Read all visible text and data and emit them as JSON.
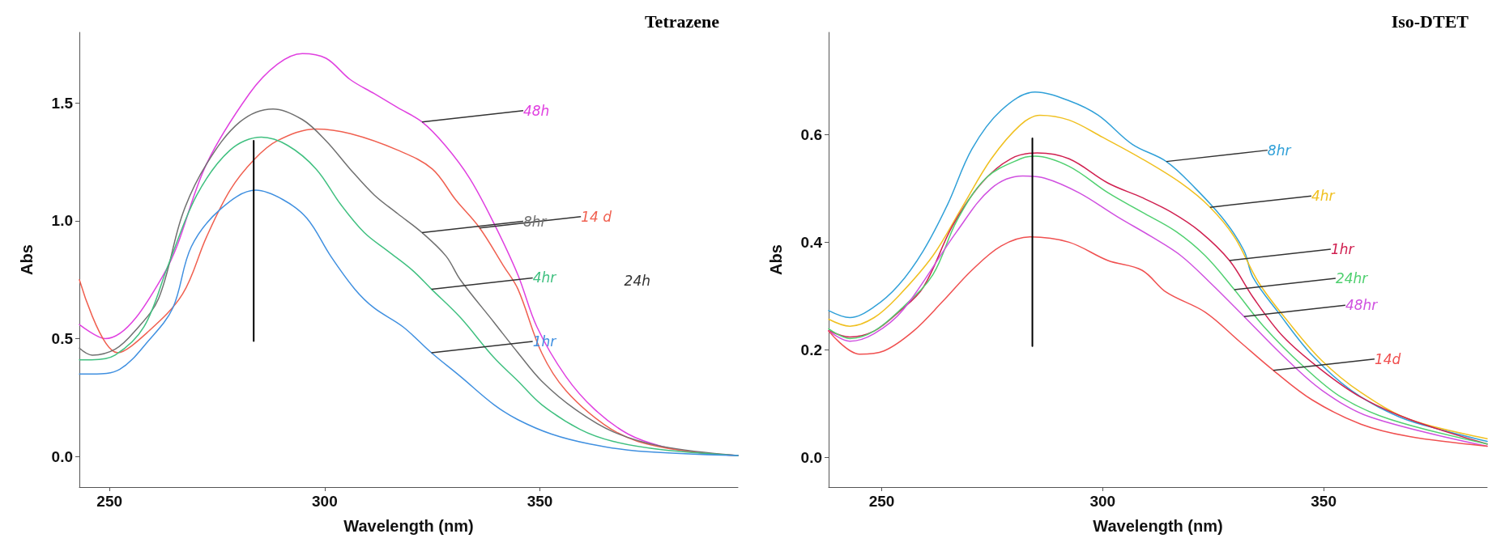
{
  "chart_data": [
    {
      "type": "line",
      "title": "Tetrazene",
      "xlabel": "Wavelength (nm)",
      "ylabel": "Abs",
      "xlim": [
        243,
        396
      ],
      "xticks": [
        250,
        300,
        350
      ],
      "ylim": [
        -0.13,
        1.8
      ],
      "yticks": [
        {
          "value": 0,
          "label": "0.0"
        },
        {
          "value": 0.5,
          "label": "0.5"
        },
        {
          "value": 1,
          "label": "1.0"
        },
        {
          "value": 1.5,
          "label": "1.5"
        }
      ],
      "grid": false,
      "marker": "none",
      "annotations": [
        "24h"
      ],
      "series": [
        {
          "name": "48h",
          "color": "#e040e0",
          "x": [
            243,
            249,
            262.5,
            272.5,
            282.5,
            289,
            294.8,
            300.3,
            305.9,
            311.5,
            317,
            322.6,
            328,
            333.7,
            339.3,
            344.9,
            349.3,
            356,
            362.7,
            370.5,
            378.3,
            387,
            396
          ],
          "values": [
            0.56,
            0.5,
            0.77,
            1.24,
            1.54,
            1.665,
            1.71,
            1.69,
            1.6,
            1.54,
            1.48,
            1.42,
            1.32,
            1.18,
            0.99,
            0.77,
            0.55,
            0.34,
            0.2,
            0.095,
            0.043,
            0.016,
            0.004
          ]
        },
        {
          "name": "14 d",
          "color": "#f06050",
          "x": [
            243,
            251.9,
            259,
            267,
            272.5,
            278,
            283.6,
            289,
            298,
            306,
            317,
            325,
            330.4,
            336,
            341.5,
            344.9,
            350.4,
            356,
            364.9,
            372.7,
            383.9,
            396
          ],
          "values": [
            0.75,
            0.44,
            0.53,
            0.69,
            0.93,
            1.13,
            1.26,
            1.34,
            1.39,
            1.37,
            1.3,
            1.22,
            1.09,
            0.97,
            0.81,
            0.71,
            0.44,
            0.28,
            0.136,
            0.064,
            0.023,
            0.004
          ]
        },
        {
          "name": "8hr",
          "color": "#707070",
          "x": [
            243,
            246,
            251.3,
            255.8,
            261.4,
            267,
            272.5,
            280.3,
            288,
            294.8,
            300.3,
            305.9,
            311.5,
            317,
            322.6,
            328.2,
            331.5,
            339.3,
            344.9,
            350.4,
            358.2,
            367,
            378.3,
            396
          ],
          "values": [
            0.46,
            0.43,
            0.455,
            0.53,
            0.67,
            1.03,
            1.24,
            1.42,
            1.475,
            1.43,
            1.34,
            1.22,
            1.11,
            1.03,
            0.95,
            0.85,
            0.75,
            0.57,
            0.44,
            0.32,
            0.2,
            0.105,
            0.043,
            0.004
          ]
        },
        {
          "name": "4hr",
          "color": "#40c080",
          "x": [
            243,
            245.8,
            251.3,
            258,
            263.6,
            270.3,
            278,
            285.3,
            291.4,
            298,
            303.7,
            309.2,
            314.8,
            320.4,
            324.8,
            331.5,
            339.3,
            344.9,
            350.4,
            359.3,
            367,
            378.3,
            396
          ],
          "values": [
            0.41,
            0.41,
            0.43,
            0.55,
            0.81,
            1.11,
            1.3,
            1.355,
            1.32,
            1.22,
            1.07,
            0.95,
            0.87,
            0.79,
            0.71,
            0.59,
            0.42,
            0.32,
            0.22,
            0.115,
            0.064,
            0.029,
            0.004
          ]
        },
        {
          "name": "1hr",
          "color": "#4090e0",
          "x": [
            243,
            246,
            252.4,
            259,
            264.7,
            269,
            275.8,
            284,
            290.3,
            295.9,
            301.4,
            307,
            311.5,
            318.2,
            324.8,
            331.5,
            339.3,
            344.9,
            352.7,
            361.6,
            372.7,
            396
          ],
          "values": [
            0.35,
            0.35,
            0.37,
            0.49,
            0.63,
            0.89,
            1.05,
            1.13,
            1.09,
            1.01,
            0.85,
            0.71,
            0.63,
            0.55,
            0.44,
            0.34,
            0.22,
            0.156,
            0.095,
            0.053,
            0.023,
            0.004
          ]
        },
        {
          "color": "#000000",
          "x": [
            283.5,
            283.5
          ],
          "values": [
            0.49,
            1.34
          ]
        }
      ]
    },
    {
      "type": "line",
      "title": "Iso-DTET",
      "xlabel": "Wavelength (nm)",
      "ylabel": "Abs",
      "xlim": [
        238,
        387
      ],
      "xticks": [
        250,
        300,
        350
      ],
      "ylim": [
        -0.055,
        0.79
      ],
      "yticks": [
        {
          "value": 0,
          "label": "0.0"
        },
        {
          "value": 0.2,
          "label": "0.2"
        },
        {
          "value": 0.4,
          "label": "0.4"
        },
        {
          "value": 0.6,
          "label": "0.6"
        }
      ],
      "grid": false,
      "marker": "none",
      "series": [
        {
          "name": "8hr",
          "color": "#30a0d8",
          "x": [
            238,
            242.8,
            248.3,
            253.8,
            259.4,
            264.9,
            270.4,
            277,
            284.7,
            292.4,
            299,
            306.7,
            314.4,
            321,
            327.6,
            332,
            334,
            339.7,
            347.4,
            356.2,
            367.2,
            378.2,
            387
          ],
          "values": [
            0.273,
            0.26,
            0.28,
            0.32,
            0.384,
            0.47,
            0.573,
            0.645,
            0.679,
            0.663,
            0.636,
            0.582,
            0.55,
            0.5,
            0.44,
            0.384,
            0.335,
            0.27,
            0.19,
            0.125,
            0.075,
            0.048,
            0.03
          ]
        },
        {
          "name": "4hr",
          "color": "#f0c020",
          "x": [
            238,
            242.8,
            248.3,
            253.8,
            261.6,
            268.2,
            274.8,
            281.4,
            285.8,
            292.4,
            300,
            308.9,
            317.7,
            324.3,
            329.8,
            335.3,
            341.9,
            349.6,
            358.4,
            369.4,
            387
          ],
          "values": [
            0.257,
            0.244,
            0.26,
            0.3,
            0.375,
            0.465,
            0.555,
            0.618,
            0.636,
            0.627,
            0.595,
            0.555,
            0.51,
            0.465,
            0.41,
            0.325,
            0.253,
            0.18,
            0.121,
            0.071,
            0.035
          ]
        },
        {
          "name": "1hr",
          "color": "#d02050",
          "x": [
            238,
            242.8,
            248.3,
            253.8,
            259.4,
            266,
            272.6,
            279.2,
            285.2,
            292.4,
            301.2,
            308.9,
            315.5,
            322,
            328.7,
            334,
            340.8,
            349.6,
            358.4,
            369.4,
            387
          ],
          "values": [
            0.236,
            0.224,
            0.235,
            0.27,
            0.316,
            0.43,
            0.51,
            0.555,
            0.566,
            0.555,
            0.51,
            0.483,
            0.456,
            0.42,
            0.366,
            0.298,
            0.225,
            0.162,
            0.112,
            0.071,
            0.025
          ]
        },
        {
          "name": "24hr",
          "color": "#50d070",
          "x": [
            238,
            242.8,
            248.3,
            254.9,
            261.6,
            267,
            273.7,
            281.4,
            284.7,
            292.4,
            301.2,
            308.9,
            316.6,
            323.2,
            329.8,
            336.4,
            345.2,
            354,
            365,
            387
          ],
          "values": [
            0.239,
            0.221,
            0.235,
            0.28,
            0.34,
            0.44,
            0.52,
            0.555,
            0.56,
            0.541,
            0.492,
            0.456,
            0.42,
            0.375,
            0.312,
            0.244,
            0.171,
            0.112,
            0.071,
            0.025
          ]
        },
        {
          "name": "48hr",
          "color": "#d050e0",
          "x": [
            238,
            242.8,
            248.3,
            254.9,
            267,
            274.8,
            281.9,
            286.9,
            294.6,
            303.4,
            311.1,
            317.7,
            324.3,
            332,
            340.8,
            349.6,
            360.6,
            387
          ],
          "values": [
            0.235,
            0.216,
            0.23,
            0.275,
            0.42,
            0.5,
            0.523,
            0.519,
            0.492,
            0.447,
            0.41,
            0.375,
            0.325,
            0.262,
            0.189,
            0.125,
            0.075,
            0.021
          ]
        },
        {
          "name": "14d",
          "color": "#f05050",
          "x": [
            238,
            245,
            250.5,
            257.2,
            263.8,
            270.4,
            277,
            283.6,
            292.4,
            301.2,
            308.9,
            314.4,
            323.2,
            330.9,
            338.6,
            347.4,
            358.4,
            369.4,
            387
          ],
          "values": [
            0.235,
            0.192,
            0.198,
            0.235,
            0.29,
            0.348,
            0.393,
            0.41,
            0.4,
            0.366,
            0.348,
            0.307,
            0.27,
            0.216,
            0.162,
            0.107,
            0.062,
            0.039,
            0.021
          ]
        },
        {
          "color": "#000000",
          "x": [
            284.1,
            284.1
          ],
          "values": [
            0.207,
            0.593
          ]
        }
      ]
    }
  ]
}
